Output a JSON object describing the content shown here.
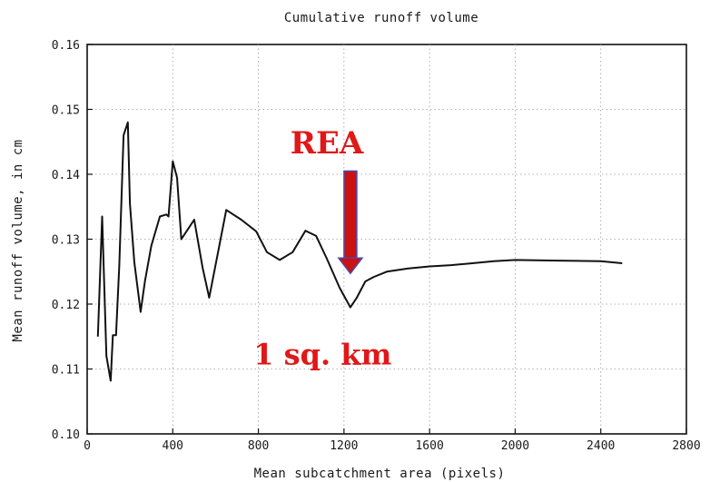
{
  "chart_data": {
    "type": "line",
    "title": "Cumulative runoff volume",
    "xlabel": "Mean subcatchment area (pixels)",
    "ylabel": "Mean runoff volume, in cm",
    "xlim": [
      0,
      2800
    ],
    "ylim": [
      0.1,
      0.16
    ],
    "x_ticks": [
      "0",
      "400",
      "800",
      "1200",
      "1600",
      "2000",
      "2400",
      "2800"
    ],
    "y_ticks": [
      "0.10",
      "0.11",
      "0.12",
      "0.13",
      "0.14",
      "0.15",
      "0.16"
    ],
    "grid": true,
    "series": [
      {
        "color": "#111111",
        "x": [
          50,
          70,
          90,
          110,
          120,
          135,
          150,
          170,
          190,
          200,
          220,
          250,
          270,
          300,
          340,
          370,
          380,
          400,
          420,
          440,
          470,
          500,
          540,
          570,
          600,
          650,
          720,
          790,
          840,
          900,
          960,
          1020,
          1070,
          1120,
          1180,
          1230,
          1260,
          1300,
          1340,
          1400,
          1500,
          1600,
          1700,
          1800,
          1900,
          2000,
          2200,
          2400,
          2500
        ],
        "y": [
          0.115,
          0.1335,
          0.112,
          0.1082,
          0.1152,
          0.1152,
          0.126,
          0.146,
          0.148,
          0.1355,
          0.1265,
          0.1188,
          0.1235,
          0.129,
          0.1335,
          0.1338,
          0.1335,
          0.142,
          0.1395,
          0.13,
          0.1315,
          0.133,
          0.1255,
          0.121,
          0.126,
          0.1345,
          0.133,
          0.1312,
          0.128,
          0.1268,
          0.128,
          0.1313,
          0.1305,
          0.127,
          0.1225,
          0.1195,
          0.121,
          0.1235,
          0.1242,
          0.125,
          0.1255,
          0.1258,
          0.126,
          0.1263,
          0.1266,
          0.1268,
          0.1267,
          0.1266,
          0.1263
        ]
      }
    ],
    "annotations": [
      {
        "text": "REA",
        "color": "#e01818"
      },
      {
        "text": "1 sq. km",
        "color": "#e01818"
      }
    ],
    "arrow": {
      "x": 1230,
      "y_from": 0.1405,
      "y_to": 0.125,
      "color": "#cc1111"
    }
  }
}
